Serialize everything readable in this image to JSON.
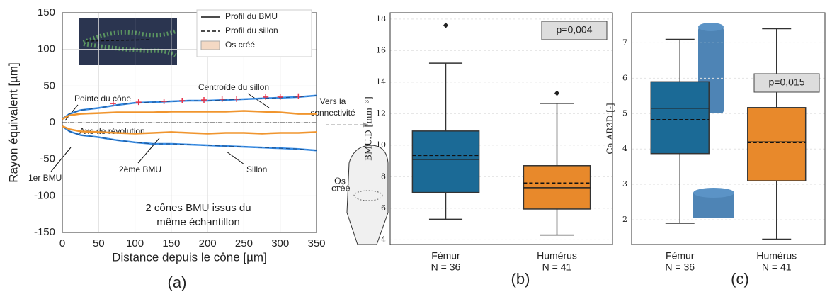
{
  "chart_data": [
    {
      "type": "line",
      "x_label": "Distance depuis le cône [µm]",
      "y_label": "Rayon équivalent [µm]",
      "xlim": [
        0,
        350
      ],
      "ylim": [
        -150,
        150
      ],
      "xticks": [
        0,
        50,
        100,
        150,
        200,
        250,
        300,
        350
      ],
      "yticks": [
        -150,
        -100,
        -50,
        0,
        50,
        100,
        150
      ],
      "grid": true,
      "x": [
        0,
        10,
        25,
        50,
        75,
        100,
        125,
        150,
        175,
        200,
        225,
        250,
        275,
        300,
        325,
        350
      ],
      "series": [
        {
          "color": "#3a8ee6",
          "dash": true,
          "values": [
            5,
            12,
            17,
            20,
            24,
            27,
            28,
            29,
            30,
            30,
            31,
            32,
            33,
            34,
            35,
            37
          ]
        },
        {
          "color": "#3a8ee6",
          "dash": true,
          "values": [
            -5,
            -12,
            -17,
            -20,
            -24,
            -27,
            -29,
            -29,
            -30,
            -31,
            -32,
            -33,
            -34,
            -35,
            -36,
            -38
          ]
        },
        {
          "color": "#f0952e",
          "dash": false,
          "values": [
            5,
            10,
            12,
            13,
            14,
            14,
            14,
            15,
            15,
            15,
            15,
            16,
            15,
            14,
            12,
            12
          ]
        },
        {
          "color": "#f0952e",
          "dash": false,
          "values": [
            -5,
            -9,
            -12,
            -13,
            -14,
            -15,
            -14,
            -13,
            -14,
            -15,
            -14,
            -14,
            -15,
            -14,
            -14,
            -13
          ]
        }
      ],
      "centroids": {
        "color": "#e8334a",
        "x": [
          70,
          105,
          140,
          165,
          195,
          220,
          240,
          280,
          300,
          325
        ],
        "values": [
          26,
          28,
          29,
          30,
          31,
          32,
          32,
          35,
          35,
          36
        ]
      },
      "legend": [
        "Profil du BMU",
        "Profil du sillon",
        "Os créé"
      ],
      "annotations": {
        "tip": "Pointe du cône",
        "centroid": "Centroïde du sillon",
        "axis": "Axe de révolution",
        "connect1": "Vers la",
        "connect2": "connectivité",
        "bmu1": "1er BMU",
        "bmu2": "2ème BMU",
        "groove": "Sillon",
        "bone1": "Os",
        "bone2": "créé",
        "note1": "2 cônes BMU issus du",
        "note2": "même échantillon"
      },
      "panel_label": "(a)"
    },
    {
      "type": "box",
      "y_label": "BMU.D [mm⁻³]",
      "ylim": [
        3.7,
        18.4
      ],
      "yticks": [
        4,
        6,
        8,
        10,
        12,
        14,
        16,
        18
      ],
      "grid": true,
      "categories": [
        "Fémur",
        "Humérus"
      ],
      "n_labels": [
        "N = 36",
        "N = 41"
      ],
      "colors": [
        "#1b6a96",
        "#e8892b"
      ],
      "boxes": [
        {
          "min": 5.3,
          "q1": 7.0,
          "median": 9.1,
          "mean": 9.35,
          "q3": 10.9,
          "max": 15.2,
          "outliers": [
            17.6
          ]
        },
        {
          "min": 4.3,
          "q1": 5.95,
          "median": 7.3,
          "mean": 7.6,
          "q3": 8.7,
          "max": 12.65,
          "outliers": [
            13.3
          ]
        }
      ],
      "p_text": "p=0,004",
      "panel_label": "(b)"
    },
    {
      "type": "box",
      "y_label": "Ca.AR3D [-]",
      "ylim": [
        1.3,
        7.85
      ],
      "yticks": [
        2,
        3,
        4,
        5,
        6,
        7
      ],
      "grid": true,
      "categories": [
        "Fémur",
        "Humérus"
      ],
      "n_labels": [
        "N = 36",
        "N = 41"
      ],
      "colors": [
        "#1b6a96",
        "#e8892b"
      ],
      "boxes": [
        {
          "min": 1.9,
          "q1": 3.87,
          "median": 5.15,
          "mean": 4.83,
          "q3": 5.9,
          "max": 7.1,
          "outliers": []
        },
        {
          "min": 1.45,
          "q1": 3.1,
          "median": 4.2,
          "mean": 4.18,
          "q3": 5.17,
          "max": 7.4,
          "outliers": []
        }
      ],
      "p_text": "p=0,015",
      "panel_label": "(c)"
    }
  ]
}
